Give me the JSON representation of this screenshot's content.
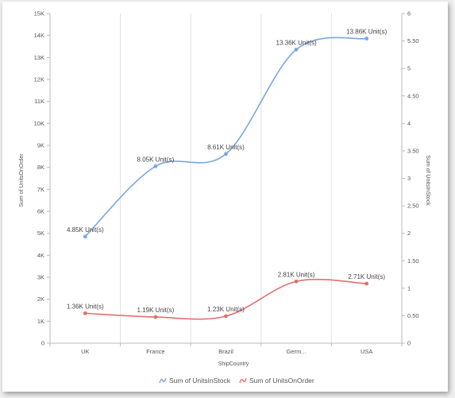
{
  "chart_data": {
    "type": "line",
    "xlabel": "ShipCountry",
    "ylabel_left": "Sum of UnitsOnOrder",
    "ylabel_right": "Sum of UnitsInStock",
    "categories": [
      "UK",
      "France",
      "Brazil",
      "Germ...",
      "USA"
    ],
    "y_left": {
      "min": 0,
      "max": 15000,
      "step": 1000,
      "ticks": [
        "0",
        "1K",
        "2K",
        "3K",
        "4K",
        "5K",
        "6K",
        "7K",
        "8K",
        "9K",
        "10K",
        "11K",
        "12K",
        "13K",
        "14K",
        "15K"
      ]
    },
    "y_right": {
      "min": 0,
      "max": 6,
      "step": 0.5,
      "ticks": [
        "0",
        "0.50",
        "1",
        "1.50",
        "2",
        "2.50",
        "3",
        "3.50",
        "4",
        "4.50",
        "5",
        "5.50",
        "6"
      ]
    },
    "series": [
      {
        "name": "Sum of UnitsInStock",
        "color": "#7ba7e0",
        "values": [
          4850,
          8050,
          8610,
          13360,
          13860
        ],
        "labels": [
          "4.85K Unit(s)",
          "8.05K Unit(s)",
          "8.61K Unit(s)",
          "13.36K Unit(s)",
          "13.86K Unit(s)"
        ]
      },
      {
        "name": "Sum of UnitsOnOrder",
        "color": "#e0706e",
        "values": [
          1360,
          1190,
          1230,
          2810,
          2710
        ],
        "labels": [
          "1.36K Unit(s)",
          "1.19K Unit(s)",
          "1.23K Unit(s)",
          "2.81K Unit(s)",
          "2.71K Unit(s)"
        ]
      }
    ],
    "legend_position": "bottom",
    "grid": "vertical"
  }
}
